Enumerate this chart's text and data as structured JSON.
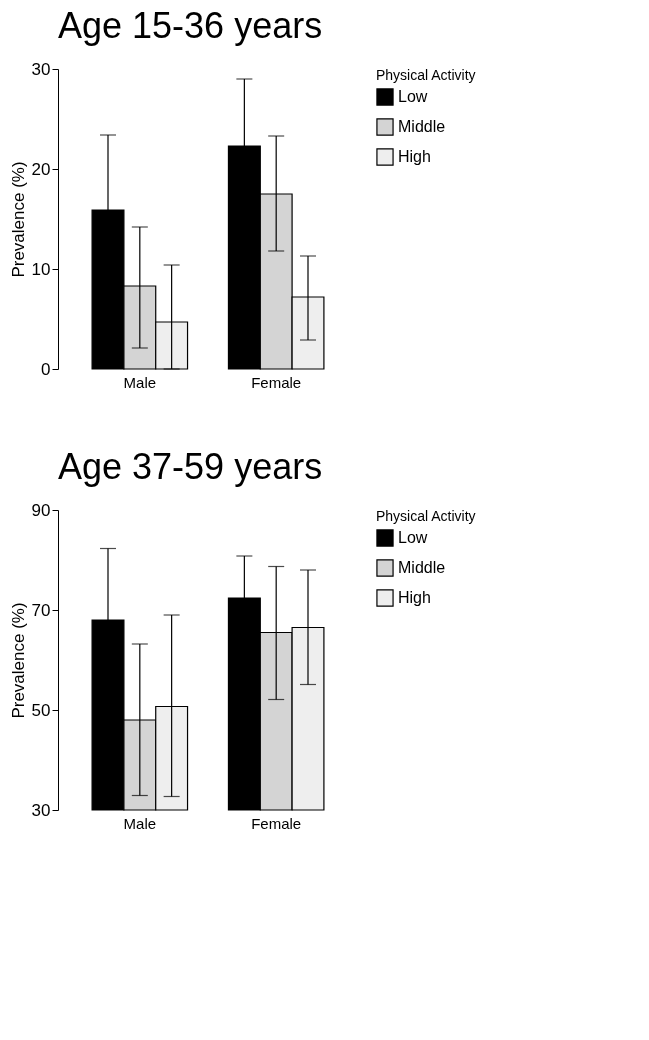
{
  "chart_data": [
    {
      "type": "bar",
      "title": "Age 15-36 years",
      "ylabel": "Prevalence (%)",
      "legend_title": "Physical Activity",
      "legend": "top right",
      "categories": [
        "Male",
        "Female"
      ],
      "ylim": [
        0,
        30
      ],
      "yticks": [
        0,
        10,
        20,
        30
      ],
      "series": [
        {
          "name": "Low",
          "color": "#000000",
          "values": [
            15.9,
            22.3
          ],
          "errors": [
            [
              15.9,
              23.4
            ],
            [
              22.3,
              29.0
            ]
          ]
        },
        {
          "name": "Middle",
          "color": "#d4d4d4",
          "values": [
            8.3,
            17.5
          ],
          "errors": [
            [
              2.1,
              14.2
            ],
            [
              11.8,
              23.3
            ]
          ]
        },
        {
          "name": "High",
          "color": "#eeeeee",
          "values": [
            4.7,
            7.2
          ],
          "errors": [
            [
              0,
              10.4
            ],
            [
              2.9,
              11.3
            ]
          ]
        }
      ]
    },
    {
      "type": "bar",
      "title": "Age 37-59 years",
      "ylabel": "Prevalence (%)",
      "legend_title": "Physical Activity",
      "legend": "top right",
      "categories": [
        "Male",
        "Female"
      ],
      "ylim": [
        30,
        90
      ],
      "yticks": [
        30,
        50,
        70,
        90
      ],
      "series": [
        {
          "name": "Low",
          "color": "#000000",
          "values": [
            68.0,
            72.4
          ],
          "errors": [
            [
              68.0,
              82.3
            ],
            [
              72.4,
              80.8
            ]
          ]
        },
        {
          "name": "Middle",
          "color": "#d4d4d4",
          "values": [
            48.0,
            65.5
          ],
          "errors": [
            [
              32.9,
              63.2
            ],
            [
              52.1,
              78.7
            ]
          ]
        },
        {
          "name": "High",
          "color": "#eeeeee",
          "values": [
            50.7,
            66.5
          ],
          "errors": [
            [
              32.7,
              69.0
            ],
            [
              55.1,
              78.0
            ]
          ]
        }
      ]
    }
  ]
}
